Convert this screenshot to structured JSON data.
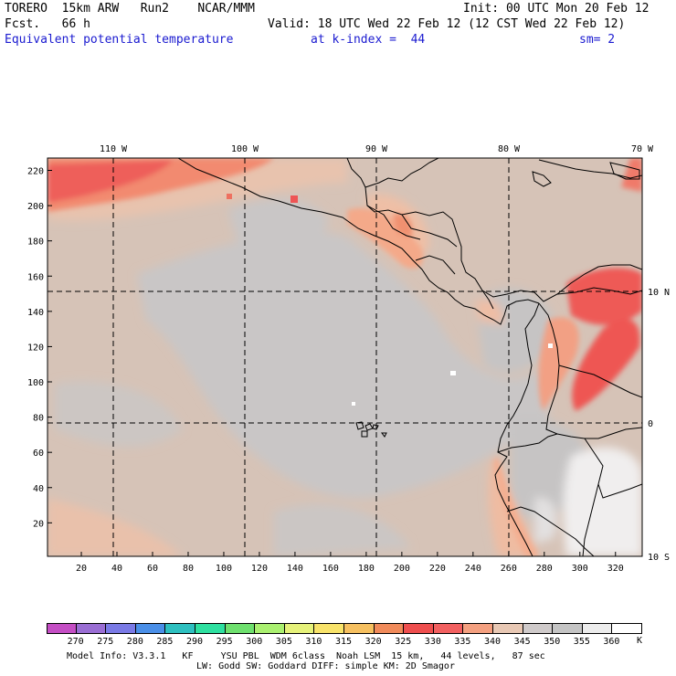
{
  "header": {
    "model": "TORERO  15km ARW   Run2    NCAR/MMM",
    "init": "Init: 00 UTC Mon 20 Feb 12",
    "fcst": "Fcst.   66 h",
    "valid": "Valid: 18 UTC Wed 22 Feb 12 (12 CST Wed 22 Feb 12)",
    "field": "Equivalent potential temperature",
    "level": "at k-index =  44",
    "smooth": "sm= 2"
  },
  "axes": {
    "top_lon_labels": [
      "110 W",
      "100 W",
      "90 W",
      "80 W",
      "70 W"
    ],
    "right_lat_labels": [
      "10 N",
      "0",
      "10 S"
    ],
    "left_ticks": [
      "220",
      "200",
      "180",
      "160",
      "140",
      "120",
      "100",
      "80",
      "60",
      "40",
      "20"
    ],
    "bottom_ticks": [
      "20",
      "40",
      "60",
      "80",
      "100",
      "120",
      "140",
      "160",
      "180",
      "200",
      "220",
      "240",
      "260",
      "280",
      "300",
      "320"
    ]
  },
  "colorbar": {
    "labels": [
      "270",
      "275",
      "280",
      "285",
      "290",
      "295",
      "300",
      "305",
      "310",
      "315",
      "320",
      "325",
      "330",
      "335",
      "340",
      "345",
      "350",
      "355",
      "360"
    ],
    "unit": "K",
    "colors": [
      "#c44ec4",
      "#9a6ed4",
      "#7a7ae6",
      "#4a8fe8",
      "#2ec0c0",
      "#2ee0a0",
      "#6ee06e",
      "#aaf070",
      "#e6f27a",
      "#f8e36a",
      "#f6c060",
      "#f08a5a",
      "#ee4e4e",
      "#f26060",
      "#f4a080",
      "#e8c8b4",
      "#cfcaca",
      "#c4c4c4",
      "#ececec",
      "#ffffff"
    ]
  },
  "footer": {
    "line1": "Model Info: V3.3.1   KF     YSU PBL  WDM 6class  Noah LSM  15 km,   44 levels,   87 sec",
    "line2": "LW: Godd SW: Goddard DIFF: simple KM: 2D Smagor"
  }
}
